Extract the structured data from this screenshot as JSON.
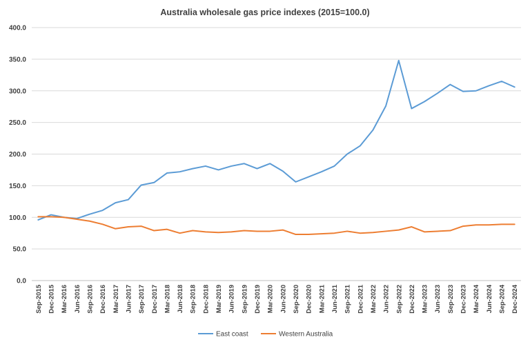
{
  "chart_data": {
    "type": "line",
    "title": "Australia wholesale gas price indexes (2015=100.0)",
    "xlabel": "",
    "ylabel": "",
    "ylim": [
      0,
      400
    ],
    "yticks": [
      "0.0",
      "50.0",
      "100.0",
      "150.0",
      "200.0",
      "250.0",
      "300.0",
      "350.0",
      "400.0"
    ],
    "grid": true,
    "legend_position": "bottom",
    "categories": [
      "Sep-2015",
      "Dec-2015",
      "Mar-2016",
      "Jun-2016",
      "Sep-2016",
      "Dec-2016",
      "Mar-2017",
      "Jun-2017",
      "Sep-2017",
      "Dec-2017",
      "Mar-2018",
      "Jun-2018",
      "Sep-2018",
      "Dec-2018",
      "Mar-2019",
      "Jun-2019",
      "Sep-2019",
      "Dec-2019",
      "Mar-2020",
      "Jun-2020",
      "Sep-2020",
      "Dec-2020",
      "Mar-2021",
      "Jun-2021",
      "Sep-2021",
      "Dec-2021",
      "Mar-2022",
      "Jun-2022",
      "Sep-2022",
      "Dec-2022",
      "Mar-2023",
      "Jun-2023",
      "Sep-2023",
      "Dec-2023",
      "Mar-2024",
      "Jun-2024",
      "Sep-2024",
      "Dec-2024"
    ],
    "series": [
      {
        "name": "East coast",
        "color": "#5B9BD5",
        "values": [
          96,
          104,
          100,
          98,
          105,
          111,
          123,
          128,
          151,
          155,
          170,
          172,
          177,
          181,
          175,
          181,
          185,
          177,
          185,
          173,
          156,
          164,
          172,
          181,
          200,
          213,
          238,
          276,
          348,
          272,
          283,
          296,
          310,
          299,
          300,
          308,
          315,
          306
        ]
      },
      {
        "name": "Western Australia",
        "color": "#ED7D31",
        "values": [
          101,
          101,
          100,
          97,
          94,
          89,
          82,
          85,
          86,
          79,
          81,
          75,
          79,
          77,
          76,
          77,
          79,
          78,
          78,
          80,
          73,
          73,
          74,
          75,
          78,
          75,
          76,
          78,
          80,
          85,
          77,
          78,
          79,
          86,
          88,
          88,
          89,
          89
        ]
      }
    ]
  }
}
